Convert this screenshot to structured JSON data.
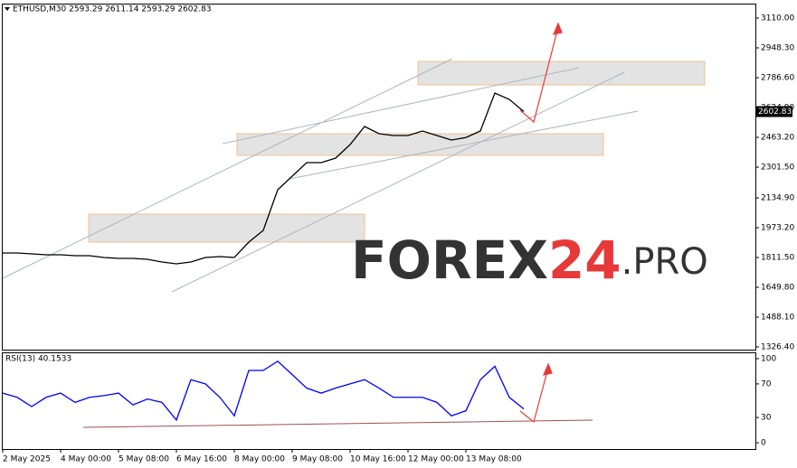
{
  "watermark": {
    "parts": [
      "FOREX",
      "24",
      ".PRO"
    ]
  },
  "chart_data": [
    {
      "type": "line",
      "title": "ETHUSD,M30  2593.29 2611.14 2593.29 2602.83",
      "color": "#000000",
      "x": [
        0,
        16,
        32,
        48,
        64,
        80,
        96,
        112,
        128,
        144,
        160,
        176,
        192,
        208,
        224,
        240,
        256,
        272,
        288,
        304,
        320,
        336,
        352,
        368,
        384,
        400,
        416,
        432,
        448,
        464,
        480,
        496,
        512,
        528,
        544,
        560,
        576
      ],
      "values": [
        1836,
        1836,
        1831.1,
        1826.2,
        1826.2,
        1821.3,
        1821.3,
        1811.5,
        1806.6,
        1806.6,
        1801.7,
        1787,
        1777.2,
        1787,
        1811.5,
        1816.4,
        1811.5,
        1894.8,
        1958.5,
        2179,
        2252.5,
        2326,
        2326,
        2350.5,
        2424,
        2522,
        2482.8,
        2473,
        2473,
        2497.5,
        2473,
        2448.5,
        2462.2,
        2497.5,
        2703.3,
        2669,
        2602.83
      ],
      "xlim": [
        0,
        832
      ],
      "ylim": [
        1311.7,
        3183.5
      ],
      "yticks": [
        {
          "value": 3110,
          "label": "3110.00"
        },
        {
          "value": 2948.3,
          "label": "2948.30"
        },
        {
          "value": 2786.6,
          "label": "2786.60"
        },
        {
          "value": 2624.9,
          "label": "2624.90"
        },
        {
          "value": 2463.2,
          "label": "2463.20"
        },
        {
          "value": 2301.5,
          "label": "2301.50"
        },
        {
          "value": 2134.9,
          "label": "2134.90"
        },
        {
          "value": 1973.2,
          "label": "1973.20"
        },
        {
          "value": 1811.5,
          "label": "1811.50"
        },
        {
          "value": 1649.8,
          "label": "1649.80"
        },
        {
          "value": 1488.1,
          "label": "1488.10"
        },
        {
          "value": 1326.4,
          "label": "1326.40"
        }
      ],
      "last_price": {
        "value": 2602.83,
        "label": "2602.83"
      }
    },
    {
      "type": "line",
      "title": "RSI(13) 40.1533",
      "color": "#0000ff",
      "x": [
        0,
        16,
        32,
        48,
        64,
        80,
        96,
        112,
        128,
        144,
        160,
        176,
        192,
        208,
        224,
        240,
        256,
        272,
        288,
        304,
        320,
        336,
        352,
        368,
        384,
        400,
        416,
        432,
        448,
        464,
        480,
        496,
        512,
        528,
        544,
        560,
        576
      ],
      "values": [
        59,
        54,
        43,
        54,
        59,
        48,
        54,
        56,
        59,
        45,
        52,
        48,
        27,
        75,
        70,
        54,
        32,
        86,
        86,
        97,
        81,
        65,
        59,
        65,
        70,
        75,
        65,
        54,
        54,
        54,
        48,
        32,
        38,
        75,
        91,
        54,
        40.15
      ],
      "xlim": [
        0,
        832
      ],
      "ylim": [
        -7.5,
        107.5
      ],
      "yticks": [
        100,
        70,
        30,
        0
      ],
      "xticks": [
        {
          "value": 0,
          "label": "2 May 2025"
        },
        {
          "value": 64,
          "label": "4 May 00:00"
        },
        {
          "value": 128,
          "label": "5 May 08:00"
        },
        {
          "value": 192,
          "label": "6 May 16:00"
        },
        {
          "value": 256,
          "label": "8 May 00:00"
        },
        {
          "value": 320,
          "label": "9 May 08:00"
        },
        {
          "value": 384,
          "label": "10 May 16:00"
        },
        {
          "value": 448,
          "label": "12 May 00:00"
        },
        {
          "value": 512,
          "label": "13 May 08:00"
        }
      ]
    }
  ]
}
